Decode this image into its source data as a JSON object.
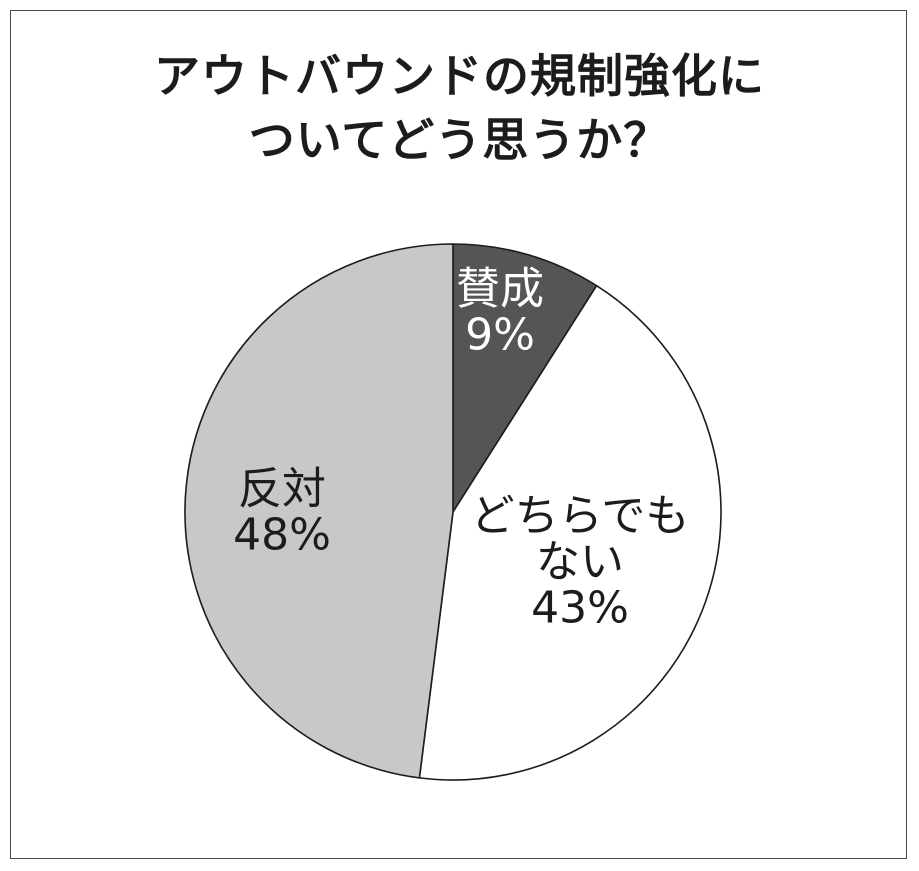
{
  "chart_data": {
    "type": "pie",
    "title_lines": [
      "アウトバウンドの規制強化に",
      "ついてどう思うか？"
    ],
    "slices": [
      {
        "label": "賛成",
        "value": 9,
        "value_label": "9%",
        "color": "#555555",
        "text_color": "#ffffff"
      },
      {
        "label": "どちらでも\nない",
        "value": 43,
        "value_label": "43%",
        "color": "#ffffff",
        "text_color": "#1c1c1c"
      },
      {
        "label": "反対",
        "value": 48,
        "value_label": "48%",
        "color": "#c8c8c8",
        "text_color": "#1c1c1c"
      }
    ],
    "start_angle_deg": 0,
    "direction": "clockwise",
    "stroke_color": "#1c1c1c"
  }
}
